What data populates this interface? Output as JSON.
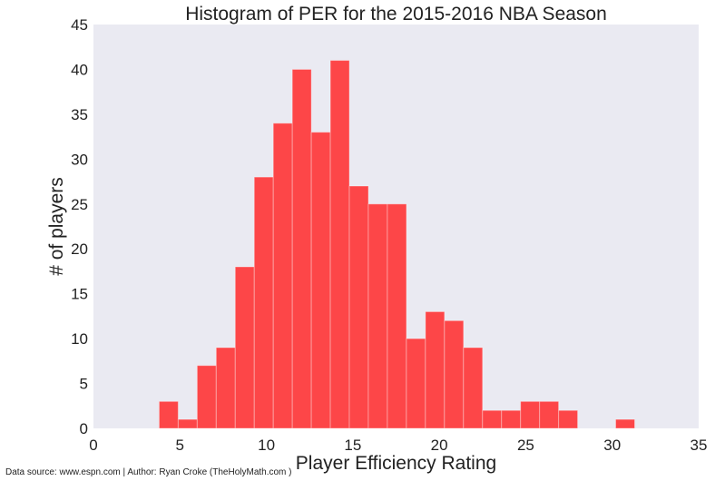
{
  "chart_data": {
    "type": "bar",
    "title": "Histogram of PER for the 2015-2016 NBA Season",
    "xlabel": "Player Efficiency Rating",
    "ylabel": "# of players",
    "xlim": [
      0,
      35
    ],
    "ylim": [
      0,
      45
    ],
    "x_ticks": [
      "0",
      "5",
      "10",
      "15",
      "20",
      "25",
      "30",
      "35"
    ],
    "y_ticks": [
      "0",
      "5",
      "10",
      "15",
      "20",
      "25",
      "30",
      "35",
      "40",
      "45"
    ],
    "bin_edges": [
      3.8,
      4.9,
      6.0,
      7.1,
      8.2,
      9.3,
      10.4,
      11.5,
      12.6,
      13.7,
      14.8,
      15.9,
      17.0,
      18.1,
      19.2,
      20.3,
      21.4,
      22.5,
      23.6,
      24.7,
      25.8,
      26.9,
      28.0,
      29.1,
      30.2,
      31.3
    ],
    "values": [
      3,
      1,
      7,
      9,
      18,
      28,
      34,
      40,
      33,
      41,
      27,
      25,
      25,
      10,
      13,
      12,
      9,
      2,
      2,
      3,
      3,
      2,
      0,
      0,
      1
    ],
    "bar_color": "#fd4648",
    "plot_background": "#eaeaf2",
    "grid": false
  },
  "caption": "Data source: www.espn.com | Author: Ryan Croke (TheHolyMath.com )"
}
